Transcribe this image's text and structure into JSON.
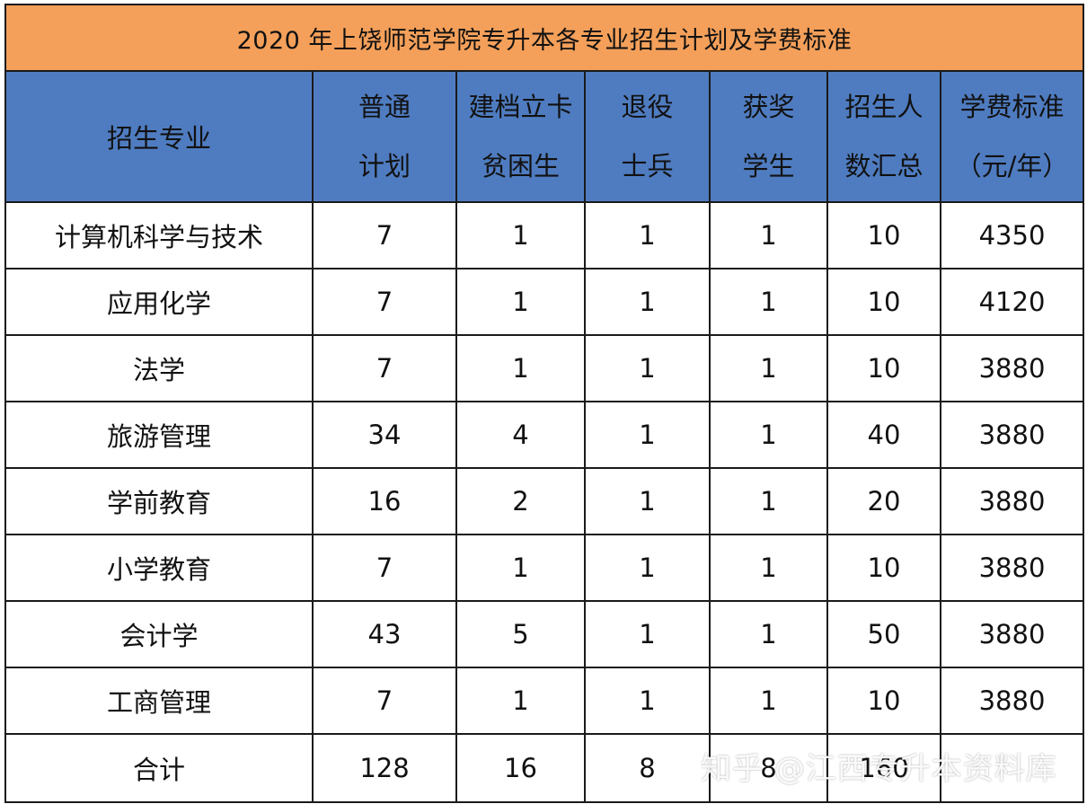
{
  "title": "2020 年上饶师范学院专升本各专业招生计划及学费标准",
  "headers": [
    {
      "line1": "招生专业",
      "line2": ""
    },
    {
      "line1": "普通",
      "line2": "计划"
    },
    {
      "line1": "建档立卡",
      "line2": "贫困生"
    },
    {
      "line1": "退役",
      "line2": "士兵"
    },
    {
      "line1": "获奖",
      "line2": "学生"
    },
    {
      "line1": "招生人",
      "line2": "数汇总"
    },
    {
      "line1": "学费标准",
      "line2": "（元/年）"
    }
  ],
  "rows": [
    [
      "计算机科学与技术",
      "7",
      "1",
      "1",
      "1",
      "10",
      "4350"
    ],
    [
      "应用化学",
      "7",
      "1",
      "1",
      "1",
      "10",
      "4120"
    ],
    [
      "法学",
      "7",
      "1",
      "1",
      "1",
      "10",
      "3880"
    ],
    [
      "旅游管理",
      "34",
      "4",
      "1",
      "1",
      "40",
      "3880"
    ],
    [
      "学前教育",
      "16",
      "2",
      "1",
      "1",
      "20",
      "3880"
    ],
    [
      "小学教育",
      "7",
      "1",
      "1",
      "1",
      "10",
      "3880"
    ],
    [
      "会计学",
      "43",
      "5",
      "1",
      "1",
      "50",
      "3880"
    ],
    [
      "工商管理",
      "7",
      "1",
      "1",
      "1",
      "10",
      "3880"
    ]
  ],
  "total": [
    "合计",
    "128",
    "16",
    "8",
    "8",
    "160",
    ""
  ],
  "watermark": "知乎 @江西专升本资料库",
  "colors": {
    "title_bg": "#f4a05a",
    "header_bg": "#4f7cc0"
  }
}
